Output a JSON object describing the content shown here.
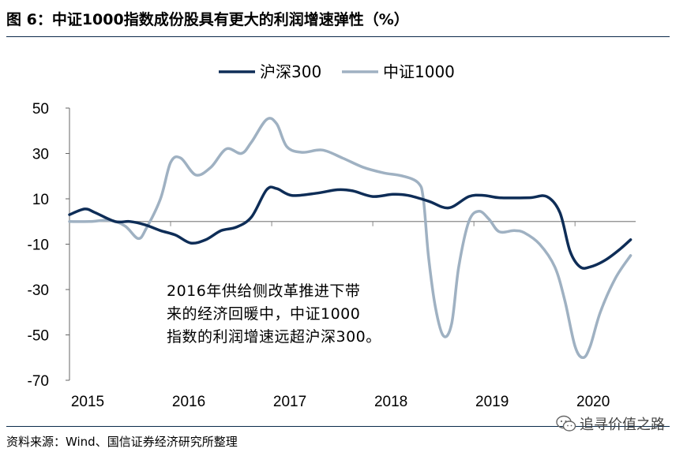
{
  "header": {
    "title": "图 6：中证1000指数成份股具有更大的利润增速弹性（%）"
  },
  "chart_data": {
    "type": "line",
    "x_tick_labels": [
      "2015",
      "2016",
      "2017",
      "2018",
      "2019",
      "2020"
    ],
    "y_ticks": [
      "50",
      "30",
      "10",
      "-10",
      "-30",
      "-50",
      "-70"
    ],
    "ylim": [
      -70,
      50
    ],
    "xlim": [
      2015.0,
      2020.6
    ],
    "legend_position": "top",
    "grid": false,
    "series": [
      {
        "name": "沪深300",
        "color": "#0e2d57",
        "points": [
          [
            2015.0,
            3
          ],
          [
            2015.15,
            5.5
          ],
          [
            2015.25,
            4
          ],
          [
            2015.45,
            0
          ],
          [
            2015.6,
            0
          ],
          [
            2015.75,
            -1.5
          ],
          [
            2015.9,
            -4
          ],
          [
            2016.05,
            -6
          ],
          [
            2016.2,
            -9.5
          ],
          [
            2016.35,
            -8
          ],
          [
            2016.5,
            -4
          ],
          [
            2016.65,
            -2.5
          ],
          [
            2016.8,
            2
          ],
          [
            2016.95,
            14
          ],
          [
            2017.05,
            14.5
          ],
          [
            2017.2,
            11.5
          ],
          [
            2017.45,
            12.5
          ],
          [
            2017.65,
            14
          ],
          [
            2017.8,
            13.5
          ],
          [
            2018.0,
            11
          ],
          [
            2018.2,
            12
          ],
          [
            2018.35,
            11.5
          ],
          [
            2018.55,
            9
          ],
          [
            2018.75,
            6
          ],
          [
            2018.95,
            11
          ],
          [
            2019.1,
            11.5
          ],
          [
            2019.25,
            10.5
          ],
          [
            2019.55,
            10.5
          ],
          [
            2019.72,
            11
          ],
          [
            2019.85,
            4
          ],
          [
            2019.95,
            -13
          ],
          [
            2020.05,
            -20
          ],
          [
            2020.15,
            -20
          ],
          [
            2020.3,
            -17
          ],
          [
            2020.45,
            -12
          ],
          [
            2020.55,
            -8
          ]
        ]
      },
      {
        "name": "中证1000",
        "color": "#9fb1c2",
        "points": [
          [
            2015.0,
            0
          ],
          [
            2015.2,
            0
          ],
          [
            2015.4,
            0.5
          ],
          [
            2015.55,
            -2
          ],
          [
            2015.68,
            -7.5
          ],
          [
            2015.76,
            -3
          ],
          [
            2015.9,
            10
          ],
          [
            2016.0,
            26
          ],
          [
            2016.1,
            28
          ],
          [
            2016.25,
            20.5
          ],
          [
            2016.4,
            24
          ],
          [
            2016.55,
            32
          ],
          [
            2016.7,
            30
          ],
          [
            2016.8,
            35
          ],
          [
            2016.95,
            45
          ],
          [
            2017.05,
            43
          ],
          [
            2017.15,
            33
          ],
          [
            2017.3,
            30.5
          ],
          [
            2017.5,
            31.5
          ],
          [
            2017.7,
            28
          ],
          [
            2017.9,
            24
          ],
          [
            2018.1,
            21.5
          ],
          [
            2018.3,
            20
          ],
          [
            2018.45,
            17
          ],
          [
            2018.5,
            10
          ],
          [
            2018.55,
            -15
          ],
          [
            2018.62,
            -38
          ],
          [
            2018.7,
            -50.5
          ],
          [
            2018.78,
            -45
          ],
          [
            2018.85,
            -20
          ],
          [
            2018.95,
            0
          ],
          [
            2019.05,
            4.5
          ],
          [
            2019.15,
            1
          ],
          [
            2019.25,
            -4.5
          ],
          [
            2019.4,
            -4
          ],
          [
            2019.5,
            -5
          ],
          [
            2019.65,
            -10
          ],
          [
            2019.8,
            -20
          ],
          [
            2019.9,
            -35
          ],
          [
            2020.0,
            -55
          ],
          [
            2020.08,
            -60
          ],
          [
            2020.15,
            -55
          ],
          [
            2020.25,
            -40
          ],
          [
            2020.4,
            -25
          ],
          [
            2020.55,
            -15
          ]
        ]
      }
    ],
    "annotation": [
      "2016年供给侧改革推进下带",
      "来的经济回暖中，中证1000",
      "指数的利润增速远超沪深300。"
    ]
  },
  "footer": {
    "source": "资料来源：Wind、国信证券经济研究所整理",
    "watermark": "追寻价值之路",
    "watermark_icon": "wechat-icon"
  }
}
